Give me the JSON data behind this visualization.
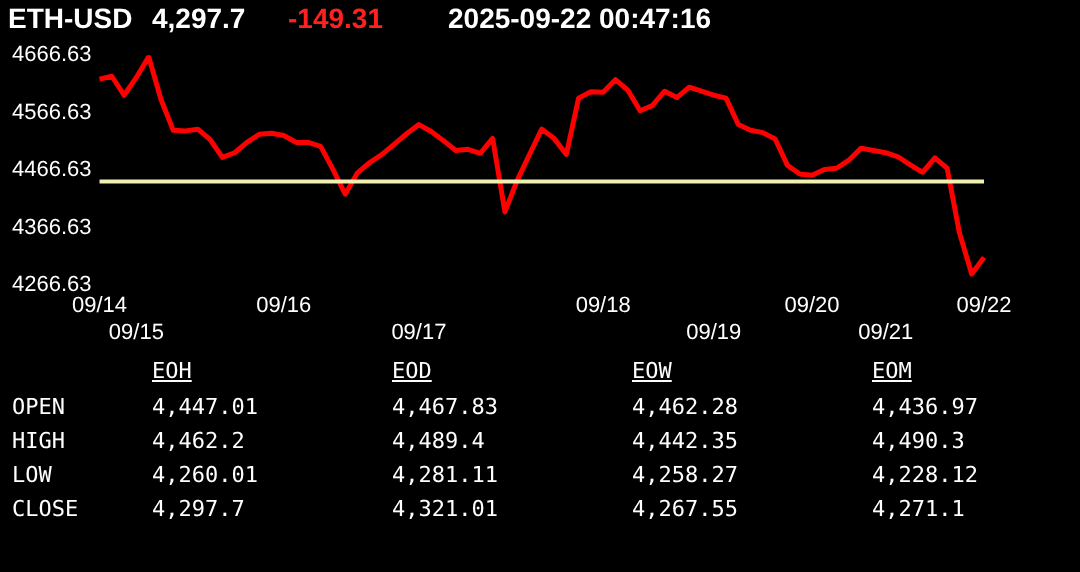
{
  "chart_data": [
    {
      "type": "line",
      "title": "ETH-USD",
      "annotations": [
        "4,297.7",
        "-149.31",
        "2025-09-22 00:47:16"
      ],
      "categories": [
        "09/14",
        null,
        null,
        "09/15",
        null,
        null,
        null,
        null,
        null,
        null,
        null,
        null,
        null,
        null,
        null,
        "09/16",
        null,
        null,
        null,
        null,
        null,
        null,
        null,
        null,
        null,
        null,
        "09/17",
        null,
        null,
        null,
        null,
        null,
        null,
        null,
        null,
        null,
        null,
        null,
        null,
        null,
        null,
        "09/18",
        null,
        null,
        null,
        null,
        null,
        null,
        null,
        null,
        "09/19",
        null,
        null,
        null,
        null,
        null,
        null,
        null,
        "09/20",
        null,
        null,
        null,
        null,
        null,
        "09/21",
        null,
        null,
        null,
        null,
        null,
        null,
        null,
        "09/22"
      ],
      "series": [
        {
          "color": "#ff0000",
          "values": [
            4625,
            4630,
            4597,
            4628,
            4664,
            4590,
            4536,
            4535,
            4538,
            4520,
            4489,
            4497,
            4515,
            4529,
            4531,
            4527,
            4515,
            4515,
            4508,
            4468,
            4425,
            4462,
            4480,
            4494,
            4512,
            4530,
            4546,
            4534,
            4518,
            4501,
            4503,
            4496,
            4522,
            4394,
            4449,
            4494,
            4538,
            4522,
            4494,
            4592,
            4603,
            4602,
            4624,
            4606,
            4570,
            4579,
            4604,
            4593,
            4611,
            4604,
            4597,
            4592,
            4546,
            4536,
            4532,
            4521,
            4475,
            4460,
            4458,
            4468,
            4470,
            4484,
            4505,
            4501,
            4497,
            4490,
            4476,
            4463,
            4488,
            4470,
            4358,
            4286,
            4315
          ]
        }
      ],
      "ylim": [
        4266.63,
        4666.63
      ],
      "yticks": [
        4266.63,
        4366.63,
        4466.63,
        4566.63,
        4666.63
      ],
      "ref_lines": [
        {
          "axis": "y",
          "value": 4447,
          "color": "#f0f0b0"
        }
      ],
      "grid": false,
      "legend": false,
      "marker": "none",
      "line_style": "solid"
    },
    {
      "type": "other",
      "categories": [
        "EOH",
        "EOD",
        "EOW",
        "EOM"
      ],
      "y_categories": [
        "OPEN",
        "HIGH",
        "LOW",
        "CLOSE"
      ],
      "cell_labels": [
        [
          "4,447.01",
          "4,467.83",
          "4,462.28",
          "4,436.97"
        ],
        [
          "4,462.2",
          "4,489.4",
          "4,442.35",
          "4,490.3"
        ],
        [
          "4,260.01",
          "4,281.11",
          "4,258.27",
          "4,228.12"
        ],
        [
          "4,297.7",
          "4,321.01",
          "4,267.55",
          "4,271.1"
        ]
      ]
    }
  ]
}
